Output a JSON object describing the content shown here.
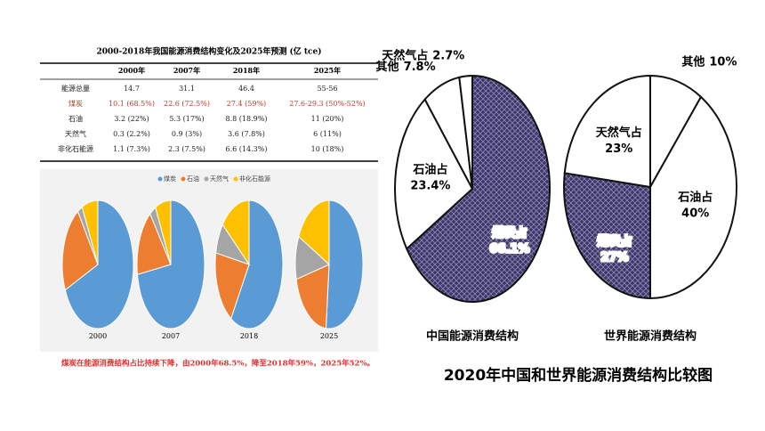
{
  "table": {
    "title": "2000-2018年我国能源消费结构变化及2025年预测 (亿 tce)",
    "header": [
      "2000年",
      "2007年",
      "2018年",
      "2025年"
    ],
    "rows": [
      [
        "能源总量",
        "14.7",
        "31.1",
        "46.4",
        "55-56"
      ],
      [
        "煤炭",
        "10.1 (68.5%)",
        "22.6 (72.5%)",
        "27.4 (59%)",
        "27.6-29.3 (50%-52%)"
      ],
      [
        "石油",
        "3.2 (22%)",
        "5.3 (17%)",
        "8.8 (18.9%)",
        "11 (20%)"
      ],
      [
        "天然气",
        "0.3 (2.2%)",
        "0.9 (3%)",
        "3.6 (7.8%)",
        "6 (11%)"
      ],
      [
        "非化石能源",
        "1.1 (7.3%)",
        "2.3 (7.5%)",
        "6.6 (14.3%)",
        "10 (18%)"
      ]
    ]
  },
  "chart_data": [
    {
      "type": "pie",
      "title": "2000",
      "categories": [
        "煤炭",
        "石油",
        "天然气",
        "非化石能源"
      ],
      "colors": [
        "#5b9bd5",
        "#ed7d31",
        "#a5a5a5",
        "#ffc000"
      ],
      "values": [
        68.5,
        22,
        2.2,
        7.3
      ],
      "legend": true
    },
    {
      "type": "pie",
      "title": "2007",
      "categories": [
        "煤炭",
        "石油",
        "天然气",
        "非化石能源"
      ],
      "colors": [
        "#5b9bd5",
        "#ed7d31",
        "#a5a5a5",
        "#ffc000"
      ],
      "values": [
        72.5,
        17,
        3,
        7.5
      ]
    },
    {
      "type": "pie",
      "title": "2018",
      "categories": [
        "煤炭",
        "石油",
        "天然气",
        "非化石能源"
      ],
      "colors": [
        "#5b9bd5",
        "#ed7d31",
        "#a5a5a5",
        "#ffc000"
      ],
      "values": [
        59,
        18.9,
        7.8,
        14.3
      ]
    },
    {
      "type": "pie",
      "title": "2025",
      "categories": [
        "煤炭",
        "石油",
        "天然气",
        "非化石能源"
      ],
      "colors": [
        "#5b9bd5",
        "#ed7d31",
        "#a5a5a5",
        "#ffc000"
      ],
      "values": [
        52,
        20,
        11,
        18
      ]
    },
    {
      "type": "pie",
      "title": "中国能源消费结构",
      "categories": [
        "煤炭占",
        "石油占",
        "其他",
        "天然气占"
      ],
      "colors": [
        "hatch",
        "#ffffff",
        "#ffffff",
        "#ffffff"
      ],
      "values": [
        66.1,
        23.4,
        7.8,
        2.7
      ],
      "value_labels": [
        "66.1%",
        "23.4%",
        "7.8%",
        "2.7%"
      ]
    },
    {
      "type": "pie",
      "title": "世界能源消费结构",
      "categories": [
        "其他",
        "石油占",
        "煤炭占",
        "天然气占"
      ],
      "colors": [
        "#ffffff",
        "#ffffff",
        "hatch",
        "#ffffff"
      ],
      "values": [
        10,
        40,
        27,
        23
      ],
      "value_labels": [
        "10%",
        "40%",
        "27%",
        "23%"
      ]
    }
  ],
  "caption": "煤炭在能源消费结构占比持续下降，由2000年68.5%，降至2018年59%，2025年52%。",
  "heading": "2020年中国和世界能源消费结构比较图"
}
